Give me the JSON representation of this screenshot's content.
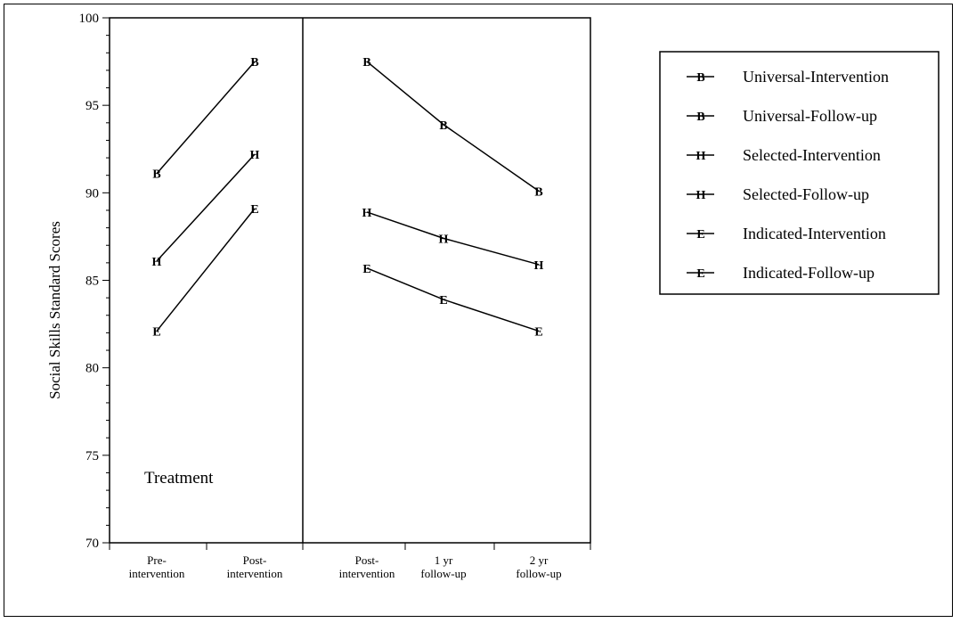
{
  "chart_data": {
    "type": "line",
    "title": "",
    "ylabel": "Social Skills Standard Scores",
    "xlabel": "",
    "ylim": [
      70,
      100
    ],
    "yticks": [
      "70",
      "75",
      "80",
      "85",
      "90",
      "95",
      "100"
    ],
    "categories": [
      [
        "Pre-",
        "intervention"
      ],
      [
        "Post-",
        "intervention"
      ],
      [
        "Post-",
        "intervention"
      ],
      [
        "1 yr",
        "follow-up"
      ],
      [
        "2 yr",
        "follow-up"
      ]
    ],
    "annotation": "Treatment",
    "legend_position": "top-right",
    "series": [
      {
        "name": "Universal-Intervention",
        "marker": "B",
        "values": [
          91.1,
          97.5,
          null,
          null,
          null
        ]
      },
      {
        "name": "Universal-Follow-up",
        "marker": "B",
        "values": [
          null,
          null,
          97.5,
          93.9,
          90.1
        ]
      },
      {
        "name": "Selected-Intervention",
        "marker": "H",
        "values": [
          86.1,
          92.2,
          null,
          null,
          null
        ]
      },
      {
        "name": "Selected-Follow-up",
        "marker": "H",
        "values": [
          null,
          null,
          88.9,
          87.4,
          85.9
        ]
      },
      {
        "name": "Indicated-Intervention",
        "marker": "E",
        "values": [
          82.1,
          89.1,
          null,
          null,
          null
        ]
      },
      {
        "name": "Indicated-Follow-up",
        "marker": "E",
        "values": [
          null,
          null,
          85.7,
          83.9,
          82.1
        ]
      }
    ]
  }
}
